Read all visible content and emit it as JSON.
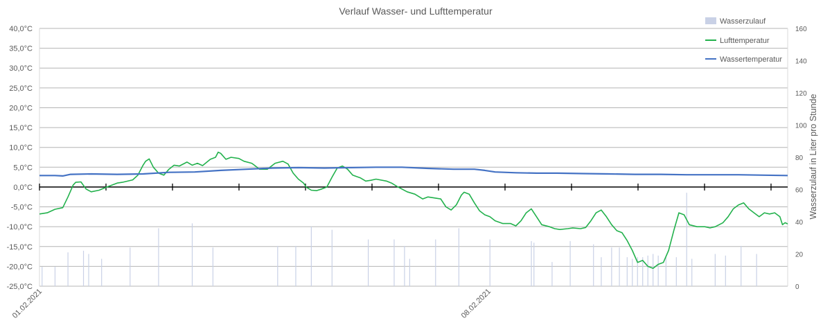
{
  "chart_data": {
    "type": "line",
    "title": "Verlauf Wasser- und Lufttemperatur",
    "xlabel": "",
    "ylabel": "",
    "y2label": "Wasserzulauf in Liter pro Stunde",
    "xlim": [
      0,
      14
    ],
    "ylim": [
      -25,
      40
    ],
    "y2lim": [
      0,
      160
    ],
    "y_ticks": [
      "40,0°C",
      "35,0°C",
      "30,0°C",
      "25,0°C",
      "20,0°C",
      "15,0°C",
      "10,0°C",
      "5,0°C",
      "0,0°C",
      "-5,0°C",
      "-10,0°C",
      "-15,0°C",
      "-20,0°C",
      "-25,0°C"
    ],
    "y2_ticks": [
      "160",
      "140",
      "120",
      "100",
      "80",
      "60",
      "40",
      "20",
      "0"
    ],
    "x_tick_labels": [
      {
        "x": 0,
        "label": "01.02.2021"
      },
      {
        "x": 8.67,
        "label": "08.02.2021"
      }
    ],
    "grid": true,
    "legend_position": "top-right",
    "colors": {
      "air": "#22b14c",
      "water": "#4472c4",
      "inflow": "#c9d1e6",
      "grid": "#b4b4b4",
      "text": "#595959"
    },
    "series": [
      {
        "name": "Wasserzulauf",
        "kind": "bar",
        "axis": "right",
        "points": [
          [
            0.05,
            12
          ],
          [
            0.3,
            12
          ],
          [
            0.55,
            21
          ],
          [
            0.85,
            22
          ],
          [
            0.95,
            20
          ],
          [
            1.2,
            17
          ],
          [
            1.75,
            24
          ],
          [
            2.3,
            36
          ],
          [
            2.95,
            39
          ],
          [
            3.35,
            24
          ],
          [
            4.6,
            25
          ],
          [
            4.95,
            25
          ],
          [
            5.25,
            37
          ],
          [
            5.65,
            35
          ],
          [
            6.35,
            29
          ],
          [
            6.85,
            29
          ],
          [
            7.05,
            25
          ],
          [
            7.15,
            17
          ],
          [
            7.65,
            29
          ],
          [
            8.1,
            36
          ],
          [
            8.7,
            29
          ],
          [
            9.5,
            28
          ],
          [
            9.55,
            27
          ],
          [
            9.9,
            15
          ],
          [
            10.25,
            28
          ],
          [
            10.7,
            26
          ],
          [
            10.85,
            18
          ],
          [
            11.05,
            24
          ],
          [
            11.2,
            24
          ],
          [
            11.35,
            18
          ],
          [
            11.45,
            17
          ],
          [
            11.55,
            18
          ],
          [
            11.65,
            18
          ],
          [
            11.75,
            19
          ],
          [
            11.85,
            20
          ],
          [
            11.95,
            19
          ],
          [
            12.1,
            18
          ],
          [
            12.3,
            18
          ],
          [
            12.5,
            58
          ],
          [
            12.6,
            17
          ],
          [
            13.05,
            20
          ],
          [
            13.25,
            19
          ],
          [
            13.55,
            25
          ],
          [
            13.85,
            20
          ]
        ]
      },
      {
        "name": "Lufttemperatur",
        "kind": "line",
        "axis": "left",
        "points": [
          [
            0,
            -6.8
          ],
          [
            0.15,
            -6.5
          ],
          [
            0.3,
            -5.6
          ],
          [
            0.45,
            -5.2
          ],
          [
            0.55,
            -2.5
          ],
          [
            0.65,
            0.5
          ],
          [
            0.7,
            1.2
          ],
          [
            0.8,
            1.3
          ],
          [
            0.9,
            -0.5
          ],
          [
            1.0,
            -1.2
          ],
          [
            1.15,
            -0.8
          ],
          [
            1.3,
            0.0
          ],
          [
            1.4,
            0.5
          ],
          [
            1.5,
            1.0
          ],
          [
            1.6,
            1.2
          ],
          [
            1.8,
            1.8
          ],
          [
            1.9,
            3.0
          ],
          [
            2.0,
            5.5
          ],
          [
            2.05,
            6.5
          ],
          [
            2.12,
            7.1
          ],
          [
            2.2,
            5.0
          ],
          [
            2.3,
            3.5
          ],
          [
            2.4,
            3.0
          ],
          [
            2.5,
            4.5
          ],
          [
            2.6,
            5.5
          ],
          [
            2.7,
            5.3
          ],
          [
            2.85,
            6.3
          ],
          [
            2.95,
            5.5
          ],
          [
            3.05,
            6.0
          ],
          [
            3.15,
            5.4
          ],
          [
            3.3,
            7.0
          ],
          [
            3.4,
            7.5
          ],
          [
            3.45,
            8.8
          ],
          [
            3.5,
            8.5
          ],
          [
            3.6,
            7.0
          ],
          [
            3.7,
            7.5
          ],
          [
            3.85,
            7.2
          ],
          [
            3.95,
            6.5
          ],
          [
            4.1,
            6.0
          ],
          [
            4.15,
            5.5
          ],
          [
            4.25,
            4.5
          ],
          [
            4.4,
            4.5
          ],
          [
            4.55,
            6.0
          ],
          [
            4.7,
            6.5
          ],
          [
            4.8,
            5.8
          ],
          [
            4.9,
            3.5
          ],
          [
            5.0,
            2.0
          ],
          [
            5.1,
            1.0
          ],
          [
            5.15,
            0.0
          ],
          [
            5.25,
            -0.8
          ],
          [
            5.35,
            -0.9
          ],
          [
            5.45,
            -0.5
          ],
          [
            5.55,
            0.0
          ],
          [
            5.65,
            2.5
          ],
          [
            5.75,
            4.8
          ],
          [
            5.85,
            5.3
          ],
          [
            5.95,
            4.5
          ],
          [
            6.05,
            3.0
          ],
          [
            6.2,
            2.3
          ],
          [
            6.3,
            1.5
          ],
          [
            6.4,
            1.7
          ],
          [
            6.5,
            2.0
          ],
          [
            6.7,
            1.5
          ],
          [
            6.8,
            1.0
          ],
          [
            6.9,
            0.2
          ],
          [
            7.0,
            -0.5
          ],
          [
            7.1,
            -1.2
          ],
          [
            7.25,
            -1.8
          ],
          [
            7.4,
            -3.0
          ],
          [
            7.5,
            -2.5
          ],
          [
            7.65,
            -2.8
          ],
          [
            7.75,
            -3.0
          ],
          [
            7.85,
            -5.0
          ],
          [
            7.95,
            -5.8
          ],
          [
            8.05,
            -4.5
          ],
          [
            8.15,
            -2.0
          ],
          [
            8.2,
            -1.3
          ],
          [
            8.3,
            -1.8
          ],
          [
            8.4,
            -4.0
          ],
          [
            8.5,
            -6.0
          ],
          [
            8.6,
            -7.0
          ],
          [
            8.7,
            -7.5
          ],
          [
            8.8,
            -8.5
          ],
          [
            8.95,
            -9.2
          ],
          [
            9.1,
            -9.2
          ],
          [
            9.2,
            -9.8
          ],
          [
            9.3,
            -8.5
          ],
          [
            9.4,
            -6.5
          ],
          [
            9.5,
            -5.5
          ],
          [
            9.6,
            -7.5
          ],
          [
            9.7,
            -9.5
          ],
          [
            9.85,
            -10.0
          ],
          [
            9.95,
            -10.5
          ],
          [
            10.05,
            -10.7
          ],
          [
            10.2,
            -10.5
          ],
          [
            10.3,
            -10.3
          ],
          [
            10.45,
            -10.5
          ],
          [
            10.55,
            -10.2
          ],
          [
            10.65,
            -8.5
          ],
          [
            10.75,
            -6.5
          ],
          [
            10.85,
            -5.8
          ],
          [
            10.95,
            -7.5
          ],
          [
            11.05,
            -9.5
          ],
          [
            11.15,
            -11.0
          ],
          [
            11.25,
            -11.5
          ],
          [
            11.35,
            -13.5
          ],
          [
            11.45,
            -16.0
          ],
          [
            11.55,
            -19.0
          ],
          [
            11.65,
            -18.5
          ],
          [
            11.75,
            -20.0
          ],
          [
            11.85,
            -20.5
          ],
          [
            11.95,
            -19.5
          ],
          [
            12.05,
            -19.0
          ],
          [
            12.15,
            -16.0
          ],
          [
            12.25,
            -11.0
          ],
          [
            12.35,
            -6.5
          ],
          [
            12.45,
            -7.0
          ],
          [
            12.55,
            -9.5
          ],
          [
            12.7,
            -10.0
          ],
          [
            12.85,
            -10.0
          ],
          [
            12.95,
            -10.3
          ],
          [
            13.05,
            -10.0
          ],
          [
            13.2,
            -9.0
          ],
          [
            13.3,
            -7.5
          ],
          [
            13.4,
            -5.5
          ],
          [
            13.5,
            -4.5
          ],
          [
            13.6,
            -4.0
          ],
          [
            13.7,
            -5.5
          ],
          [
            13.8,
            -6.5
          ],
          [
            13.9,
            -7.5
          ],
          [
            14.0,
            -6.5
          ],
          [
            14.1,
            -6.8
          ],
          [
            14.2,
            -6.5
          ],
          [
            14.3,
            -7.5
          ],
          [
            14.35,
            -9.5
          ],
          [
            14.4,
            -9.0
          ],
          [
            14.45,
            -9.3
          ]
        ]
      },
      {
        "name": "Wassertemperatur",
        "kind": "line",
        "axis": "left",
        "points": [
          [
            0,
            2.9
          ],
          [
            0.3,
            2.9
          ],
          [
            0.45,
            2.8
          ],
          [
            0.6,
            3.2
          ],
          [
            1.0,
            3.3
          ],
          [
            1.5,
            3.2
          ],
          [
            2.0,
            3.3
          ],
          [
            2.5,
            3.7
          ],
          [
            3.0,
            3.8
          ],
          [
            3.5,
            4.2
          ],
          [
            4.0,
            4.5
          ],
          [
            4.5,
            4.8
          ],
          [
            5.0,
            4.9
          ],
          [
            5.5,
            4.8
          ],
          [
            6.0,
            4.9
          ],
          [
            6.5,
            5.0
          ],
          [
            7.0,
            5.0
          ],
          [
            7.5,
            4.7
          ],
          [
            8.0,
            4.5
          ],
          [
            8.4,
            4.5
          ],
          [
            8.6,
            4.2
          ],
          [
            8.8,
            3.8
          ],
          [
            9.2,
            3.6
          ],
          [
            9.6,
            3.5
          ],
          [
            10.0,
            3.5
          ],
          [
            10.5,
            3.4
          ],
          [
            11.0,
            3.3
          ],
          [
            11.5,
            3.2
          ],
          [
            12.0,
            3.2
          ],
          [
            12.5,
            3.1
          ],
          [
            13.0,
            3.1
          ],
          [
            13.5,
            3.1
          ],
          [
            14.0,
            3.0
          ],
          [
            14.45,
            2.9
          ]
        ]
      }
    ]
  }
}
